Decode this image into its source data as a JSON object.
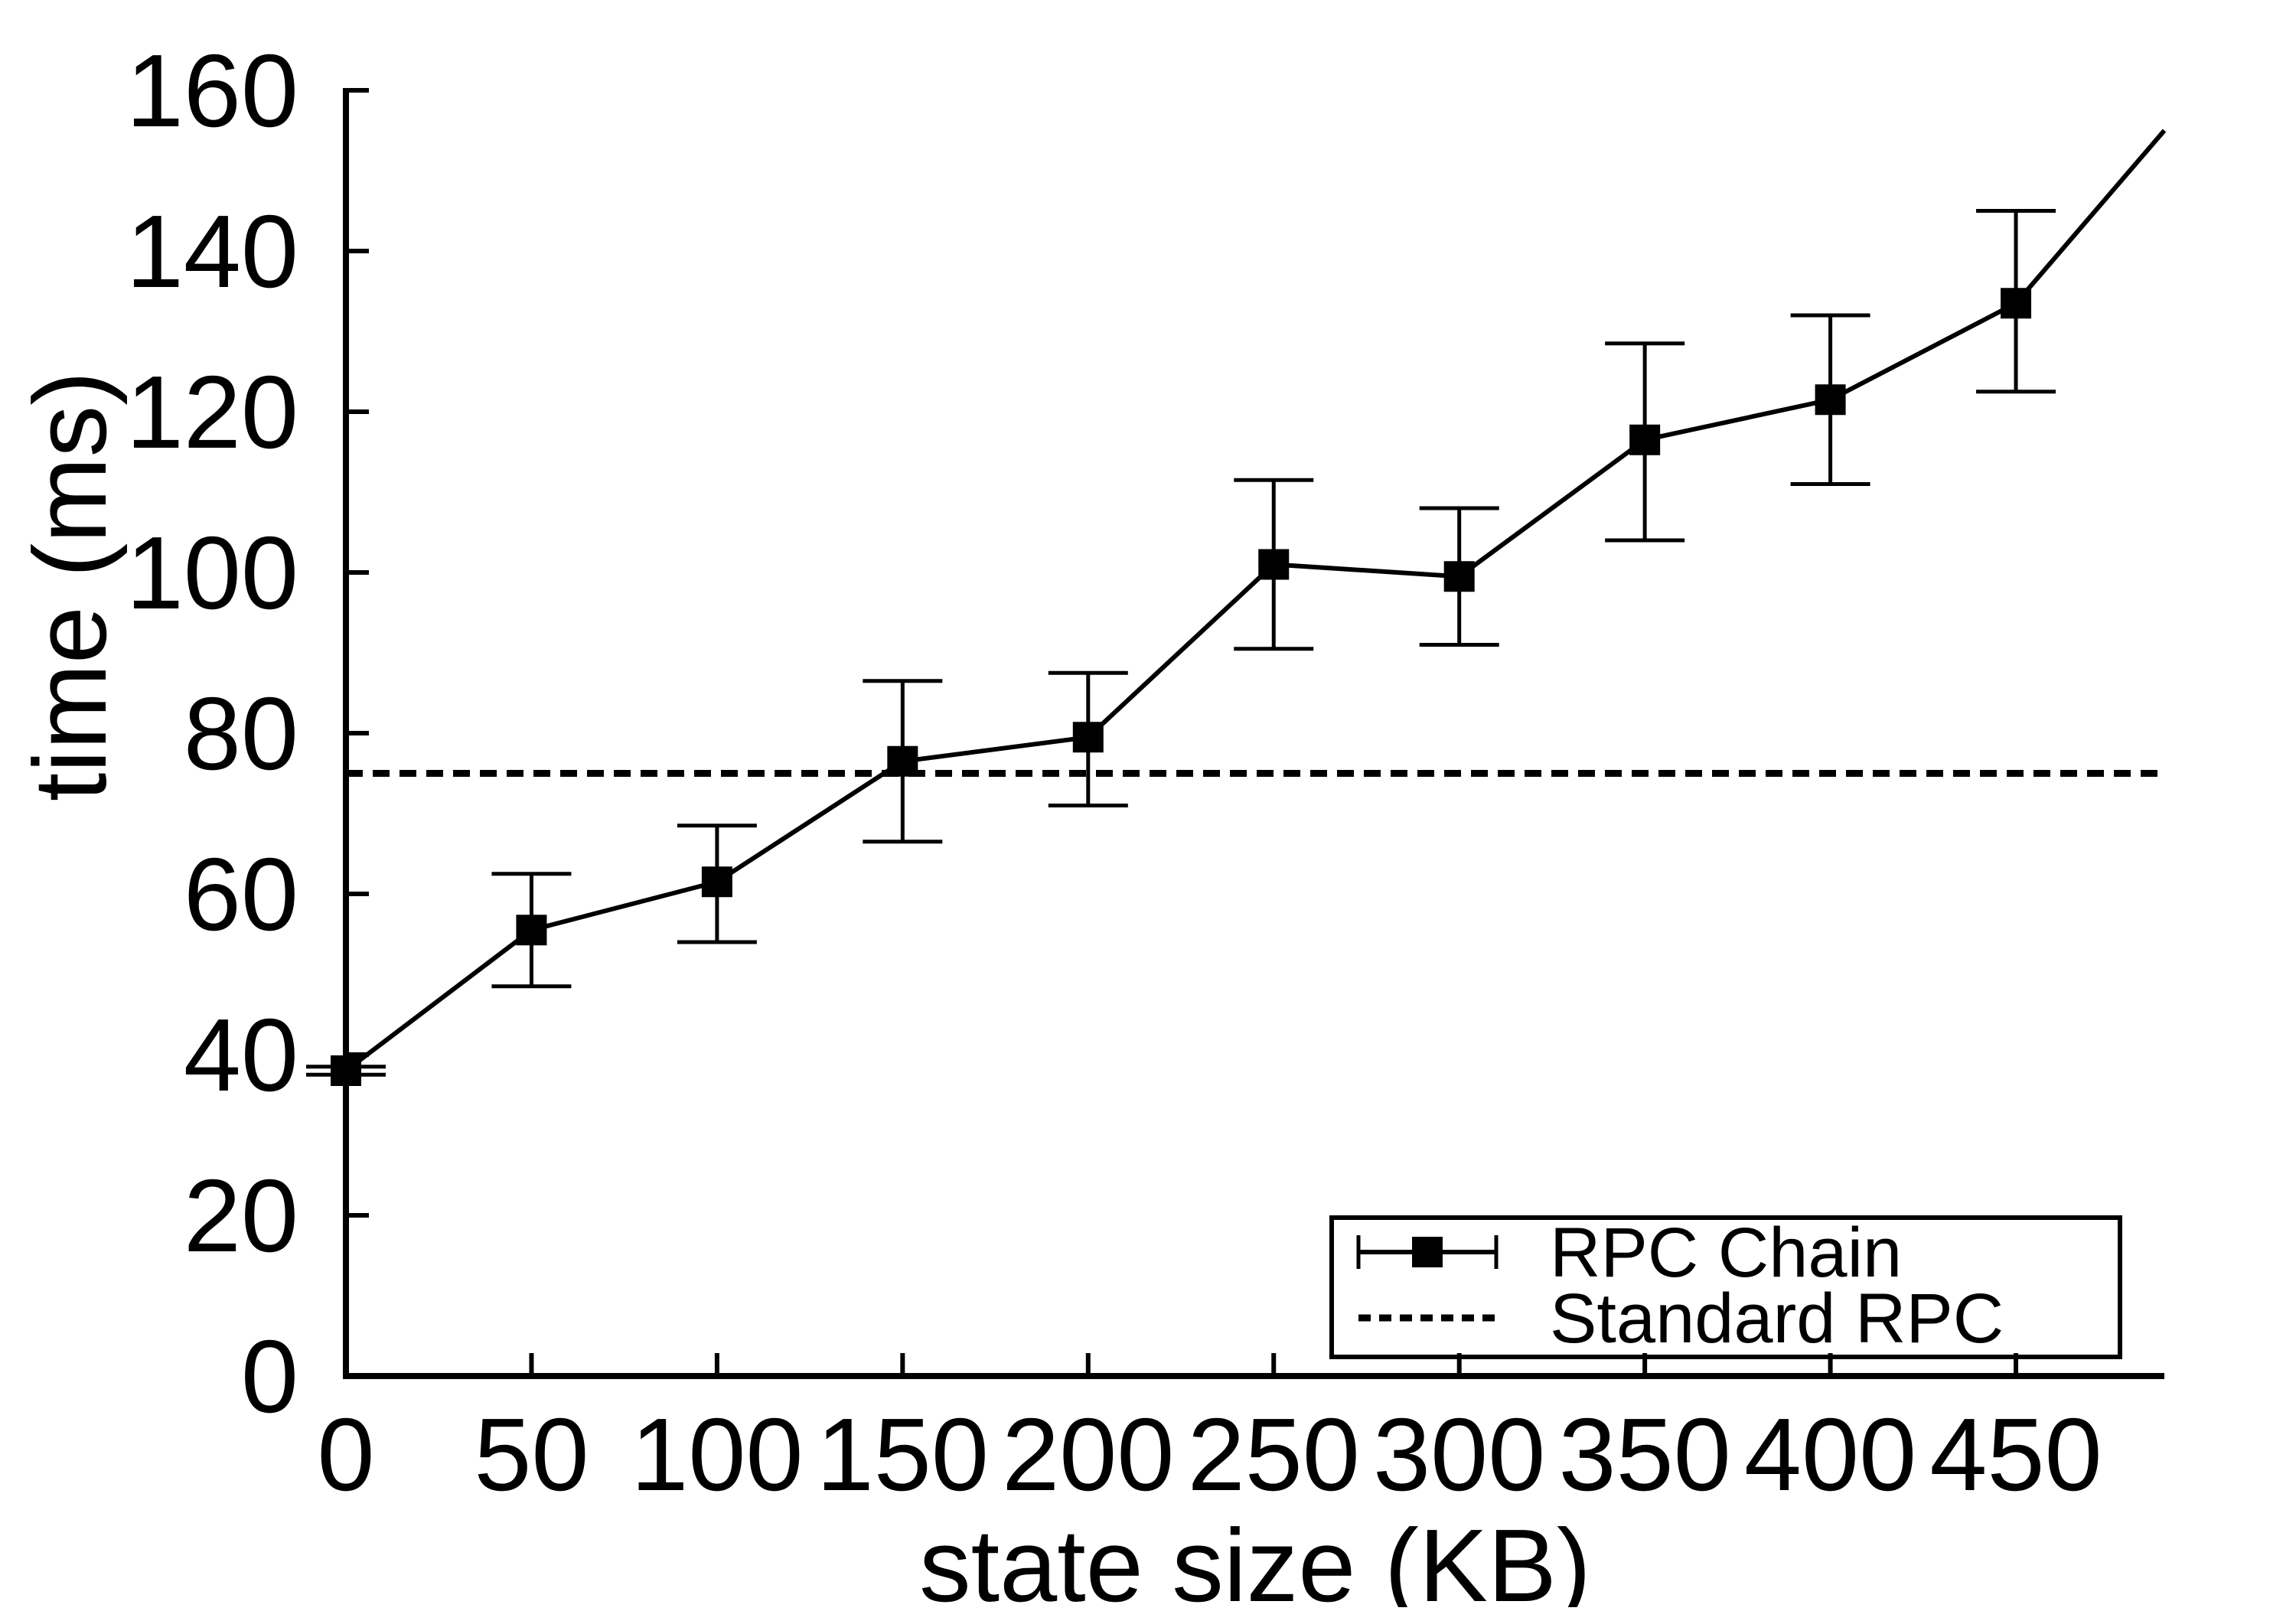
{
  "chart_data": {
    "type": "line",
    "title": "",
    "xlabel": "state size (KB)",
    "ylabel": "time (ms)",
    "xlim": [
      0,
      490
    ],
    "ylim": [
      0,
      160
    ],
    "x_ticks": [
      0,
      50,
      100,
      150,
      200,
      250,
      300,
      350,
      400,
      450
    ],
    "y_ticks": [
      0,
      20,
      40,
      60,
      80,
      100,
      120,
      140,
      160
    ],
    "grid": false,
    "legend_position": "bottom-right",
    "colors": {
      "foreground": "#000000",
      "background": "#ffffff"
    },
    "series": [
      {
        "name": "RPC Chain",
        "style": "solid line with filled square markers and error bars",
        "x": [
          0,
          50,
          100,
          150,
          200,
          250,
          300,
          350,
          400,
          450
        ],
        "y": [
          38,
          55.5,
          61.5,
          76.5,
          79.5,
          101,
          99.5,
          116.5,
          121.5,
          133.5
        ],
        "y_err_low": [
          37.5,
          48.5,
          54,
          66.5,
          71,
          90.5,
          91,
          104,
          111,
          122.5
        ],
        "y_err_high": [
          38.5,
          62.5,
          68.5,
          86.5,
          87.5,
          111.5,
          108,
          128.5,
          132,
          145
        ],
        "line_continues_to": {
          "x": 490,
          "y": 155
        }
      },
      {
        "name": "Standard RPC",
        "style": "dashed horizontal line",
        "value": 75
      }
    ]
  }
}
